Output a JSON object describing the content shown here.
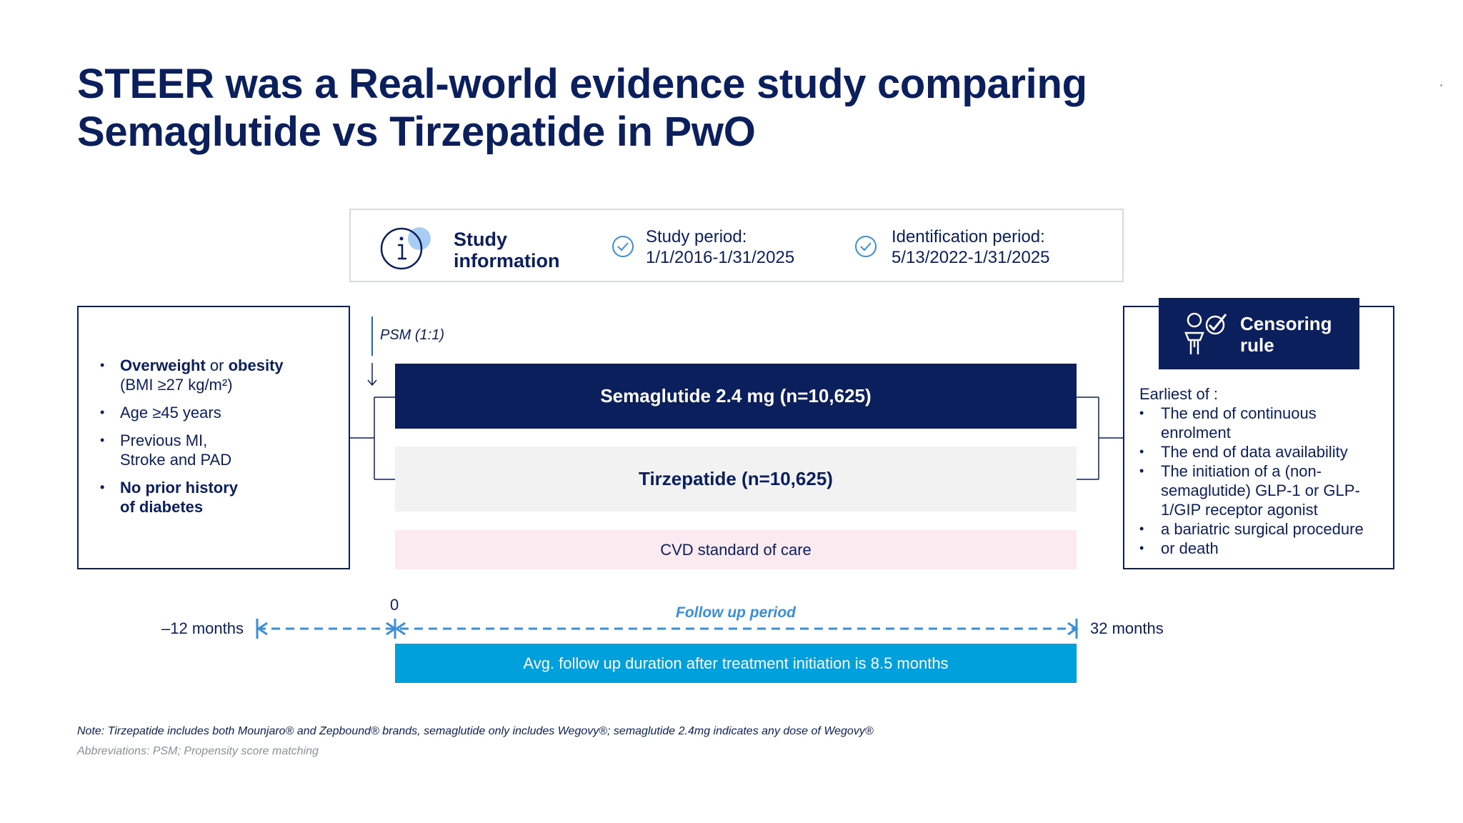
{
  "title": {
    "line1": "STEER was a Real-world evidence study comparing",
    "line2": "Semaglutide vs  Tirzepatide in PwO"
  },
  "study_info": {
    "heading_line1": "Study",
    "heading_line2": "information",
    "study_period_label": "Study period:",
    "study_period_value": "1/1/2016-1/31/2025",
    "identification_period_label": "Identification period:",
    "identification_period_value": "5/13/2022-1/31/2025"
  },
  "criteria": {
    "item1_bold1": "Overweight",
    "item1_or": " or ",
    "item1_bold2": "obesity",
    "item1_line2": "(BMI ≥27 kg/m²)",
    "item2": "Age ≥45 years",
    "item3_line1": "Previous MI,",
    "item3_line2": "Stroke and PAD",
    "item4_line1": "No prior history",
    "item4_line2": "of diabetes"
  },
  "psm_label": "PSM (1:1)",
  "arms": {
    "semaglutide": "Semaglutide 2.4 mg (n=10,625)",
    "tirzepatide": "Tirzepatide (n=10,625)",
    "cvd": "CVD standard of care"
  },
  "censoring": {
    "title_line1": "Censoring",
    "title_line2": "rule",
    "intro": "Earliest of :",
    "items": [
      "The end of continuous enrolment",
      "The end of data availability",
      "The initiation of a (non-semaglutide) GLP-1 or GLP-1/GIP receptor agonist",
      "a bariatric surgical procedure",
      "or death"
    ]
  },
  "timeline": {
    "start_label": "–12 months",
    "zero_label": "0",
    "end_label": "32 months",
    "follow_up_label": "Follow up period",
    "avg_text": "Avg. follow up duration after treatment initiation is 8.5 months"
  },
  "footer": {
    "note": "Note: Tirzepatide includes both Mounjaro® and Zepbound® brands, semaglutide only includes Wegovy®; semaglutide 2.4mg indicates any dose of Wegovy®",
    "abbreviations": "Abbreviations: PSM; Propensity score matching"
  },
  "colors": {
    "navy": "#0b1f5c",
    "light_blue": "#00a0dc",
    "dash_blue": "#3a8fd6",
    "grey_bar": "#f2f2f3",
    "pink_bar": "#fbeaf0"
  },
  "icons": [
    "info-icon",
    "check-circle-icon",
    "censoring-person-check-icon",
    "arrow-down-icon"
  ]
}
